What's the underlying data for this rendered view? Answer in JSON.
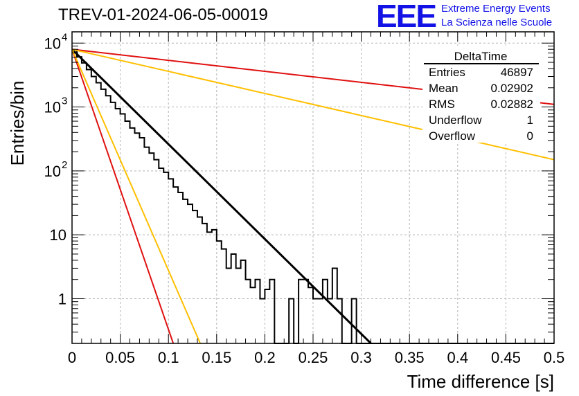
{
  "title": "TREV-01-2024-06-05-00019",
  "logo": {
    "mark": "EEE",
    "line1": "Extreme Energy Events",
    "line2": "La Scienza nelle Scuole"
  },
  "stats_box": {
    "name": "DeltaTime",
    "rows": [
      {
        "label": "Entries",
        "value": "46897"
      },
      {
        "label": "Mean",
        "value": "0.02902"
      },
      {
        "label": "RMS",
        "value": "0.02882"
      },
      {
        "label": "Underflow",
        "value": "1"
      },
      {
        "label": "Overflow",
        "value": "0"
      }
    ]
  },
  "chart_data": {
    "type": "line",
    "xlabel": "Time difference [s]",
    "ylabel": "Entries/bin",
    "xlim": [
      0,
      0.5
    ],
    "ylim": [
      0.2,
      15000
    ],
    "yscale": "log",
    "grid": true,
    "x_ticks": [
      {
        "v": 0,
        "label": "0"
      },
      {
        "v": 0.05,
        "label": "0.05"
      },
      {
        "v": 0.1,
        "label": "0.1"
      },
      {
        "v": 0.15,
        "label": "0.15"
      },
      {
        "v": 0.2,
        "label": "0.2"
      },
      {
        "v": 0.25,
        "label": "0.25"
      },
      {
        "v": 0.3,
        "label": "0.3"
      },
      {
        "v": 0.35,
        "label": "0.35"
      },
      {
        "v": 0.4,
        "label": "0.4"
      },
      {
        "v": 0.45,
        "label": "0.45"
      },
      {
        "v": 0.5,
        "label": "0.5"
      }
    ],
    "y_ticks": [
      {
        "v": 1,
        "label": "1"
      },
      {
        "v": 10,
        "label": "10"
      },
      {
        "v": 100,
        "label": "10",
        "exp": "2"
      },
      {
        "v": 1000,
        "label": "10",
        "exp": "3"
      },
      {
        "v": 10000,
        "label": "10",
        "exp": "4"
      }
    ],
    "histogram": {
      "bin_width": 0.005,
      "values": [
        7800,
        6100,
        4900,
        3850,
        3000,
        2400,
        1900,
        1500,
        1180,
        940,
        780,
        600,
        470,
        390,
        330,
        235,
        190,
        150,
        110,
        95,
        75,
        56,
        46,
        36,
        30,
        24,
        19,
        15,
        11,
        12,
        8,
        6,
        3,
        5,
        3,
        4,
        2,
        1.5,
        2,
        1,
        1.4,
        2,
        0.1,
        0.1,
        0,
        1,
        0,
        2,
        2,
        1.5,
        1,
        1,
        2,
        1,
        3,
        1,
        0,
        0,
        1,
        0,
        0,
        0,
        0,
        0,
        0,
        0,
        0,
        0,
        0,
        0,
        0,
        0,
        0,
        0,
        0,
        0,
        0,
        0,
        0,
        0,
        0,
        0,
        0,
        0,
        0,
        0,
        0,
        0,
        0,
        0,
        0,
        0,
        0,
        0,
        0,
        0,
        0,
        0,
        0,
        0
      ]
    },
    "series": [
      {
        "color": "#000000",
        "x": [
          0,
          0.31
        ],
        "y": [
          8000,
          0.2
        ]
      },
      {
        "color": "#e01010",
        "x": [
          0,
          0.5
        ],
        "y": [
          8000,
          1100
        ]
      },
      {
        "color": "#ffbf00",
        "x": [
          0,
          0.5
        ],
        "y": [
          8000,
          150
        ]
      },
      {
        "color": "#e01010",
        "x": [
          0,
          0.105
        ],
        "y": [
          8000,
          0.2
        ]
      },
      {
        "color": "#ffbf00",
        "x": [
          0,
          0.133
        ],
        "y": [
          8000,
          0.2
        ]
      }
    ]
  }
}
